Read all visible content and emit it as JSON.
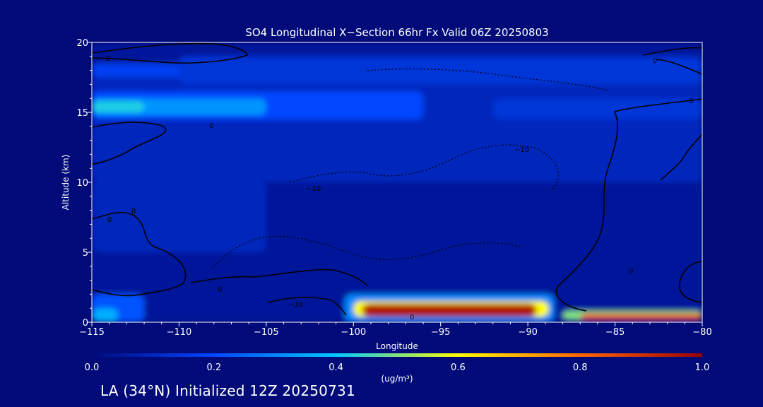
{
  "chart_data": {
    "type": "heatmap",
    "title": "SO4 Longitudinal X−Section 66hr  Fx Valid 06Z 20250803",
    "xlabel": "Longitude",
    "ylabel": "Altitude (km)",
    "xlim": [
      -115,
      -80
    ],
    "ylim": [
      0,
      20
    ],
    "x_ticks": [
      -115,
      -110,
      -105,
      -100,
      -95,
      -90,
      -85,
      -80
    ],
    "x_tick_labels": [
      "−115",
      "−110",
      "−105",
      "−100",
      "−95",
      "−90",
      "−85",
      "−80"
    ],
    "y_ticks": [
      0,
      5,
      10,
      15,
      20
    ],
    "y_tick_labels": [
      "0",
      "5",
      "10",
      "15",
      "20"
    ],
    "colorbar": {
      "label": "(ug/m³)",
      "ticks": [
        0.0,
        0.2,
        0.4,
        0.6,
        0.8,
        1.0
      ],
      "tick_labels": [
        "0.0",
        "0.2",
        "0.4",
        "0.6",
        "0.8",
        "1.0"
      ],
      "colors": [
        "#000a78",
        "#0046ff",
        "#00c8ff",
        "#ffff00",
        "#ff6400",
        "#960000"
      ]
    },
    "contour_labels": [
      "0",
      "0",
      "0",
      "0",
      "0",
      "0",
      "0",
      "0",
      "0",
      "−10",
      "−10",
      "−10"
    ],
    "grid": false,
    "cells": [
      {
        "lon": [
          -115,
          -80
        ],
        "alt": [
          0,
          20
        ],
        "value": 0.05
      },
      {
        "lon": [
          -115,
          -80
        ],
        "alt": [
          10,
          18
        ],
        "value": 0.1
      },
      {
        "lon": [
          -115,
          -96
        ],
        "alt": [
          14.5,
          16.5
        ],
        "value": 0.2
      },
      {
        "lon": [
          -115,
          -105
        ],
        "alt": [
          14.8,
          16
        ],
        "value": 0.32
      },
      {
        "lon": [
          -115,
          -112
        ],
        "alt": [
          15,
          15.8
        ],
        "value": 0.42
      },
      {
        "lon": [
          -115,
          -109
        ],
        "alt": [
          17.5,
          18.5
        ],
        "value": 0.18
      },
      {
        "lon": [
          -110,
          -80
        ],
        "alt": [
          17,
          19
        ],
        "value": 0.14
      },
      {
        "lon": [
          -92,
          -80
        ],
        "alt": [
          14.5,
          16
        ],
        "value": 0.14
      },
      {
        "lon": [
          -115,
          -112
        ],
        "alt": [
          0,
          2
        ],
        "value": 0.22
      },
      {
        "lon": [
          -115,
          -113.5
        ],
        "alt": [
          0,
          1
        ],
        "value": 0.36
      },
      {
        "lon": [
          -115,
          -105
        ],
        "alt": [
          5,
          10
        ],
        "value": 0.1
      },
      {
        "lon": [
          -100.5,
          -88.5
        ],
        "alt": [
          0,
          2
        ],
        "value": 0.3
      },
      {
        "lon": [
          -100,
          -88.8
        ],
        "alt": [
          0.4,
          1.5
        ],
        "value": 0.6
      },
      {
        "lon": [
          -99.5,
          -89.5
        ],
        "alt": [
          0.4,
          1.3
        ],
        "value": 0.95
      },
      {
        "lon": [
          -88,
          -80
        ],
        "alt": [
          0.2,
          0.8
        ],
        "value": 0.5
      },
      {
        "lon": [
          -87,
          -80
        ],
        "alt": [
          0.2,
          0.6
        ],
        "value": 0.85
      }
    ]
  },
  "footer": {
    "text": "LA (34°N) Initialized 12Z 20250731"
  }
}
